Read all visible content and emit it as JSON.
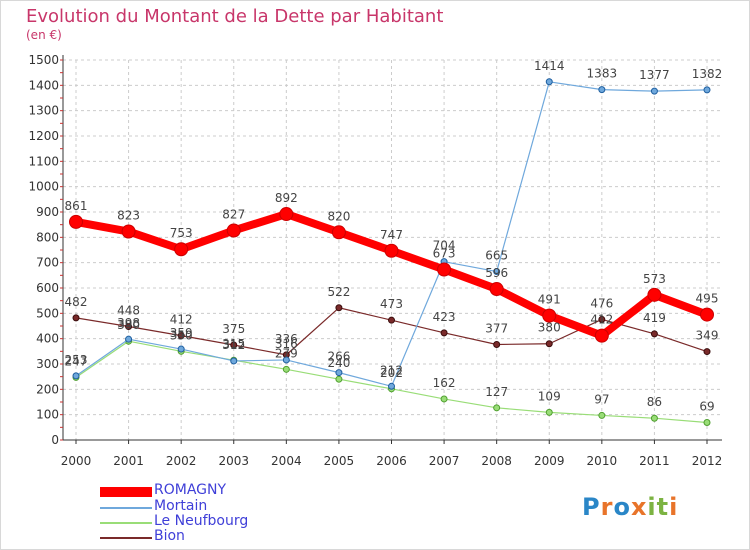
{
  "title": "Evolution du Montant de la Dette par Habitant",
  "unit_label": "(en €)",
  "chart_data": {
    "type": "line",
    "title": "Evolution du Montant de la Dette par Habitant",
    "ylabel": "(en €)",
    "xlabel": "",
    "ylim": [
      0,
      1500
    ],
    "yticks": [
      0,
      100,
      200,
      300,
      400,
      500,
      600,
      700,
      800,
      900,
      1000,
      1100,
      1200,
      1300,
      1400,
      1500
    ],
    "categories": [
      "2000",
      "2001",
      "2002",
      "2003",
      "2004",
      "2005",
      "2006",
      "2007",
      "2008",
      "2009",
      "2010",
      "2011",
      "2012"
    ],
    "grid": true,
    "legend_position": "bottom-left",
    "series": [
      {
        "name": "ROMAGNY",
        "color": "#ff0000",
        "values": [
          861,
          823,
          753,
          827,
          892,
          820,
          747,
          673,
          596,
          491,
          412,
          573,
          495
        ]
      },
      {
        "name": "Mortain",
        "color": "#6fa8dc",
        "values": [
          253,
          398,
          359,
          312,
          316,
          266,
          212,
          704,
          665,
          1414,
          1383,
          1377,
          1382
        ]
      },
      {
        "name": "Le Neufbourg",
        "color": "#99dd77",
        "values": [
          247,
          390,
          350,
          315,
          279,
          240,
          202,
          162,
          127,
          109,
          97,
          86,
          69
        ]
      },
      {
        "name": "Bion",
        "color": "#7a2a2a",
        "values": [
          482,
          448,
          412,
          375,
          336,
          522,
          473,
          423,
          377,
          380,
          476,
          419,
          349
        ]
      }
    ]
  },
  "logo": {
    "text": "Proxiti",
    "letters": [
      "P",
      "r",
      "o",
      "x",
      "i",
      "t",
      "i"
    ],
    "colors": [
      "#2a86c7",
      "#e8742a",
      "#2a86c7",
      "#e8742a",
      "#7cb342",
      "#7cb342",
      "#e8742a"
    ]
  }
}
